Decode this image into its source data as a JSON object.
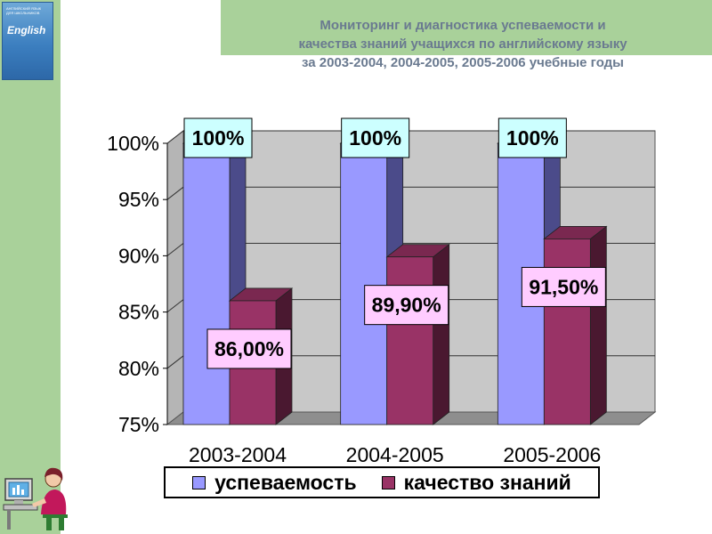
{
  "title_lines": [
    "Мониторинг и диагностика успеваемости и",
    "качества знаний учащихся по английскому языку",
    "за 2003-2004, 2004-2005, 2005-2006 учебные годы"
  ],
  "book": {
    "subtitle": "АНГЛИЙСКИЙ ЯЗЫК ДЛЯ ШКОЛЬНИКОВ",
    "title": "English"
  },
  "colors": {
    "background_green": "#a9d19a",
    "title": "#6a7a90",
    "wall": "#c8c8c8",
    "floor": "#8e8e8e",
    "label_bg_top": "#ccffff",
    "label_bg_bottom": "#ffccff"
  },
  "chart_data": {
    "type": "bar",
    "categories": [
      "2003-2004",
      "2004-2005",
      "2005-2006"
    ],
    "series": [
      {
        "name": "успеваемость",
        "values": [
          100,
          100,
          100
        ],
        "labels": [
          "100%",
          "100%",
          "100%"
        ],
        "color": "#9999ff",
        "side_color": "#4b4b8a",
        "top_color": "#7a7ad0"
      },
      {
        "name": "качество знаний",
        "values": [
          86.0,
          89.9,
          91.5
        ],
        "labels": [
          "86,00%",
          "89,90%",
          "91,50%"
        ],
        "color": "#993366",
        "side_color": "#4a1830",
        "top_color": "#7a2850"
      }
    ],
    "ylim": [
      75,
      100
    ],
    "yticks": [
      75,
      80,
      85,
      90,
      95,
      100
    ],
    "ytick_labels": [
      "75%",
      "80%",
      "85%",
      "90%",
      "95%",
      "100%"
    ],
    "grid": true,
    "legend_position": "bottom",
    "style": "3d-clustered-column"
  }
}
